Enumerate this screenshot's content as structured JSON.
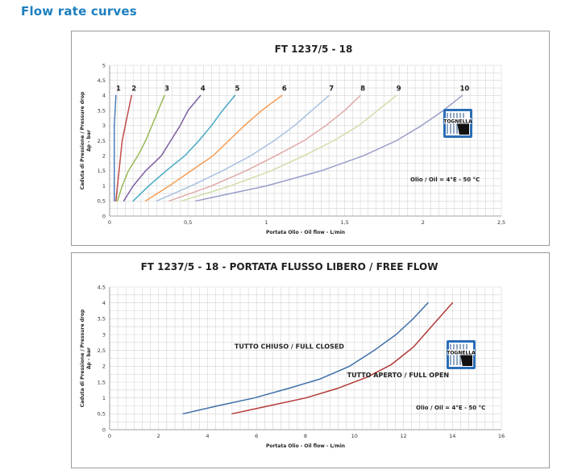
{
  "page": {
    "heading": "Flow rate curves"
  },
  "chart_data": [
    {
      "type": "line",
      "title": "FT 1237/5 - 18",
      "xlabel": "Portata Olio - Oil flow -  L/min",
      "ylabel": [
        "Caduta di Pressione / Pressure drop",
        "Δp - bar"
      ],
      "xlim": [
        0,
        2.5
      ],
      "ylim": [
        0,
        5
      ],
      "xticks": [
        "0",
        "0,5",
        "1",
        "1,5",
        "2",
        "2,5"
      ],
      "yticks": [
        "0",
        "0,5",
        "1",
        "1,5",
        "2",
        "2,5",
        "3",
        "3,5",
        "4",
        "4,5",
        "5"
      ],
      "grid": true,
      "note": "Olio / Oil = 4°E - 50 °C",
      "logo_text": "TOGNELLA",
      "series": [
        {
          "name": "1",
          "color": "#4a7ebb",
          "x": [
            0.03,
            0.03,
            0.03,
            0.03,
            0.03,
            0.03,
            0.035,
            0.04
          ],
          "y": [
            0.5,
            1.0,
            1.5,
            2.0,
            2.5,
            3.0,
            3.5,
            4.0
          ]
        },
        {
          "name": "2",
          "color": "#be4b48",
          "x": [
            0.04,
            0.05,
            0.06,
            0.07,
            0.08,
            0.1,
            0.12,
            0.14
          ],
          "y": [
            0.5,
            1.0,
            1.5,
            2.0,
            2.5,
            3.0,
            3.5,
            4.0
          ]
        },
        {
          "name": "3",
          "color": "#98b954",
          "x": [
            0.05,
            0.08,
            0.12,
            0.18,
            0.23,
            0.27,
            0.31,
            0.35
          ],
          "y": [
            0.5,
            1.0,
            1.5,
            2.0,
            2.5,
            3.0,
            3.5,
            4.0
          ]
        },
        {
          "name": "4",
          "color": "#7d60a0",
          "x": [
            0.09,
            0.15,
            0.23,
            0.33,
            0.39,
            0.45,
            0.5,
            0.58
          ],
          "y": [
            0.5,
            1.0,
            1.5,
            2.0,
            2.5,
            3.0,
            3.5,
            4.0
          ]
        },
        {
          "name": "5",
          "color": "#46aac5",
          "x": [
            0.15,
            0.25,
            0.36,
            0.48,
            0.57,
            0.65,
            0.72,
            0.8
          ],
          "y": [
            0.5,
            1.0,
            1.5,
            2.0,
            2.5,
            3.0,
            3.5,
            4.0
          ]
        },
        {
          "name": "6",
          "color": "#f59d56",
          "x": [
            0.23,
            0.38,
            0.52,
            0.66,
            0.76,
            0.86,
            0.97,
            1.1
          ],
          "y": [
            0.5,
            1.0,
            1.5,
            2.0,
            2.5,
            3.0,
            3.5,
            4.0
          ]
        },
        {
          "name": "7",
          "color": "#a9c0e0",
          "x": [
            0.3,
            0.52,
            0.72,
            0.9,
            1.05,
            1.18,
            1.29,
            1.4
          ],
          "y": [
            0.5,
            1.0,
            1.5,
            2.0,
            2.5,
            3.0,
            3.5,
            4.0
          ]
        },
        {
          "name": "8",
          "color": "#e0a9a7",
          "x": [
            0.38,
            0.65,
            0.87,
            1.06,
            1.24,
            1.38,
            1.5,
            1.6
          ],
          "y": [
            0.5,
            1.0,
            1.5,
            2.0,
            2.5,
            3.0,
            3.5,
            4.0
          ]
        },
        {
          "name": "9",
          "color": "#cfdea9",
          "x": [
            0.46,
            0.77,
            1.03,
            1.24,
            1.43,
            1.59,
            1.71,
            1.83
          ],
          "y": [
            0.5,
            1.0,
            1.5,
            2.0,
            2.5,
            3.0,
            3.5,
            4.0
          ]
        },
        {
          "name": "10",
          "color": "#9a9ec9",
          "x": [
            0.55,
            1.0,
            1.35,
            1.62,
            1.83,
            1.99,
            2.13,
            2.25
          ],
          "y": [
            0.5,
            1.0,
            1.5,
            2.0,
            2.5,
            3.0,
            3.5,
            4.0
          ]
        }
      ]
    },
    {
      "type": "line",
      "title": "FT 1237/5 - 18 - PORTATA FLUSSO LIBERO / FREE FLOW",
      "xlabel": "Portata Olio - Oil flow -  L/min",
      "ylabel": [
        "Caduta di Pressione / Pressure drop",
        "Δp - bar"
      ],
      "xlim": [
        0,
        16
      ],
      "ylim": [
        0,
        4.5
      ],
      "xticks": [
        "0",
        "2",
        "4",
        "6",
        "8",
        "10",
        "12",
        "14",
        "16"
      ],
      "yticks": [
        "0",
        "0,5",
        "1",
        "1,5",
        "2",
        "2,5",
        "3",
        "3,5",
        "4",
        "4,5"
      ],
      "grid": true,
      "note": "Olio / Oil = 4°E - 50 °C",
      "logo_text": "TOGNELLA",
      "series": [
        {
          "name": "TUTTO CHIUSO / FULL CLOSED",
          "color": "#3d6ea8",
          "label_x": 5.1,
          "label_y": 2.55,
          "x": [
            3.0,
            4.4,
            5.9,
            7.3,
            8.6,
            9.8,
            10.8,
            11.7,
            12.4,
            13.0
          ],
          "y": [
            0.5,
            0.75,
            1.0,
            1.3,
            1.6,
            2.0,
            2.5,
            3.0,
            3.5,
            4.0
          ]
        },
        {
          "name": "TUTTO APERTO / FULL OPEN",
          "color": "#b33a38",
          "label_x": 9.7,
          "label_y": 1.65,
          "x": [
            5.0,
            6.5,
            8.0,
            9.3,
            10.5,
            11.5,
            12.4,
            13.2,
            14.0
          ],
          "y": [
            0.5,
            0.75,
            1.0,
            1.3,
            1.65,
            2.05,
            2.6,
            3.3,
            4.0
          ]
        }
      ]
    }
  ]
}
